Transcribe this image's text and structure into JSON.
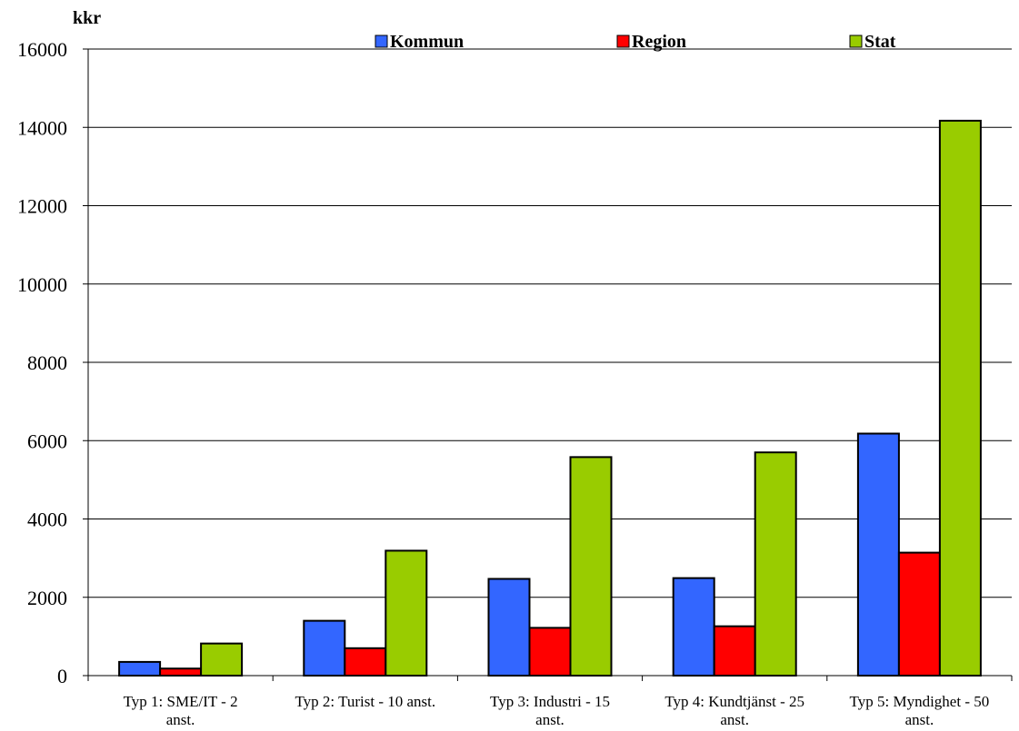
{
  "chart_data": {
    "type": "bar",
    "title": "",
    "xlabel": "",
    "ylabel": "kkr",
    "ylim": [
      0,
      16000
    ],
    "yticks": [
      0,
      2000,
      4000,
      6000,
      8000,
      10000,
      12000,
      14000,
      16000
    ],
    "grid": true,
    "legend_position": "top",
    "categories": [
      [
        "Typ 1: SME/IT - 2",
        "anst."
      ],
      [
        "Typ  2: Turist - 10 anst."
      ],
      [
        "Typ 3: Industri - 15",
        "anst."
      ],
      [
        "Typ 4: Kundtjänst - 25",
        "anst."
      ],
      [
        "Typ 5: Myndighet - 50",
        "anst."
      ]
    ],
    "series": [
      {
        "name": "Kommun",
        "color": "#3366ff",
        "values": [
          350,
          1400,
          2470,
          2490,
          6180
        ]
      },
      {
        "name": "Region",
        "color": "#ff0000",
        "values": [
          180,
          700,
          1220,
          1260,
          3140
        ]
      },
      {
        "name": "Stat",
        "color": "#99cc00",
        "values": [
          820,
          3190,
          5580,
          5700,
          14170
        ]
      }
    ]
  }
}
